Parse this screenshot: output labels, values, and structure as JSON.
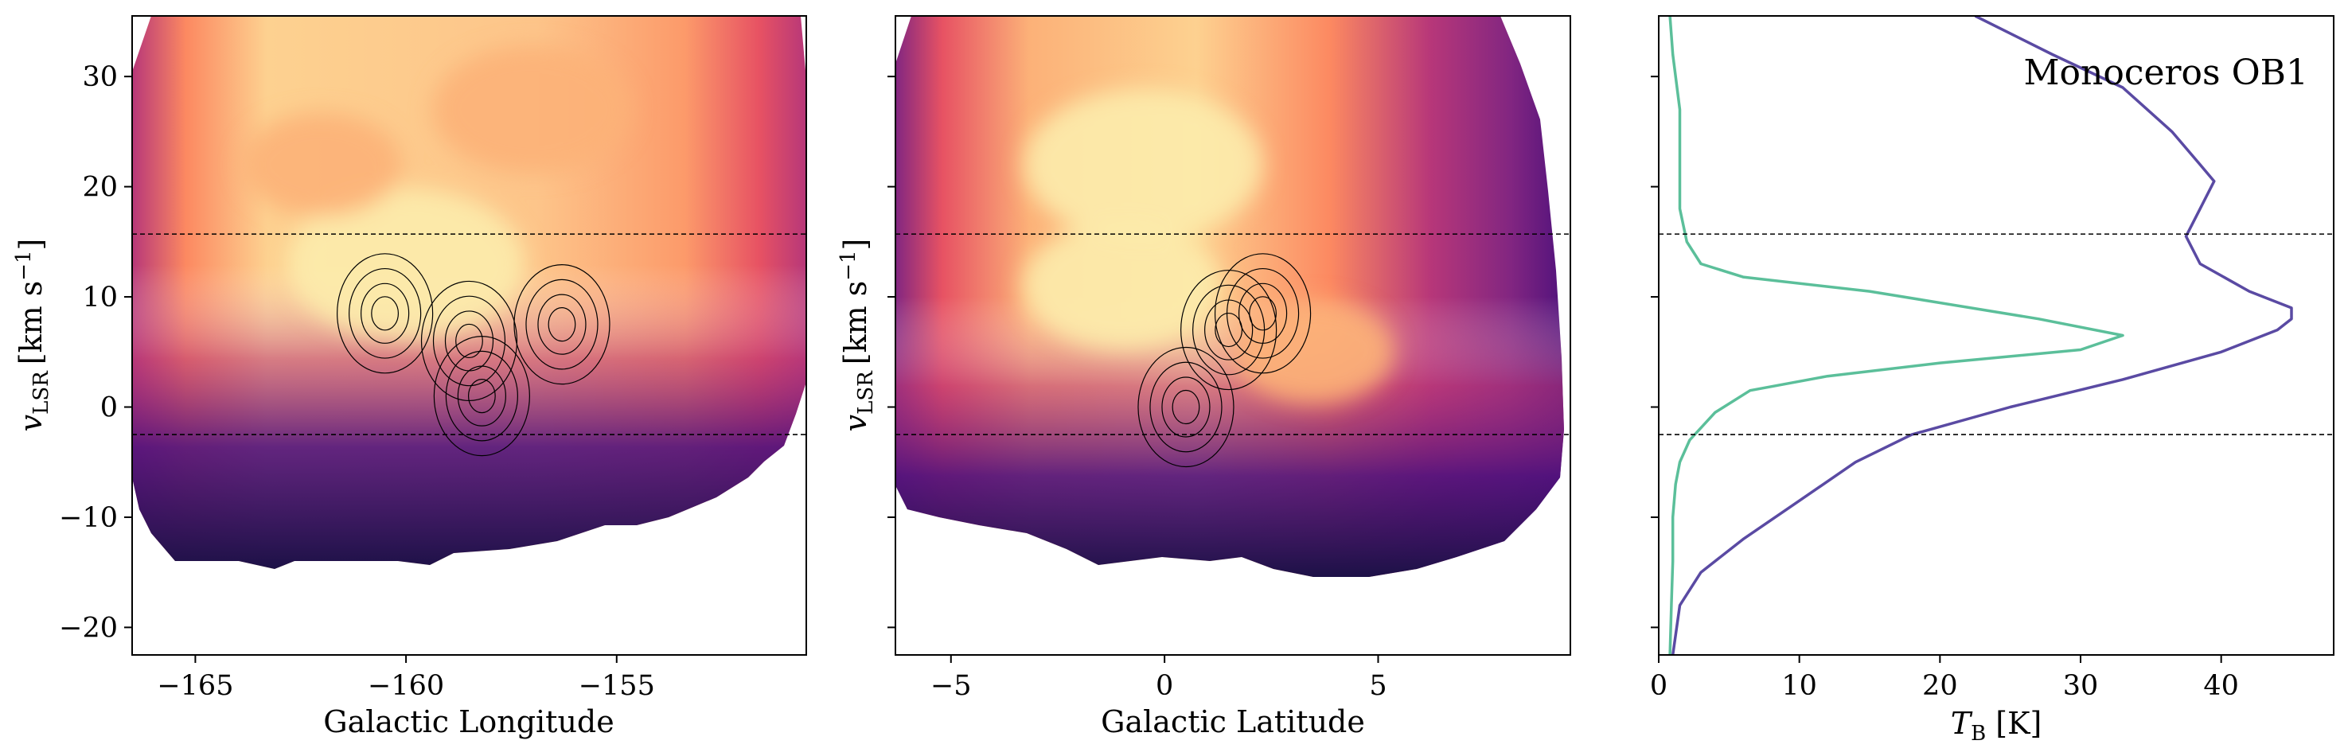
{
  "chart_data": [
    {
      "type": "heatmap",
      "xlabel": "Galactic Longitude",
      "ylabel_main": "v",
      "ylabel_sub": "LSR",
      "ylabel_unit": "[km s",
      "ylabel_exp": "−1",
      "ylabel_close": "]",
      "xlim": [
        -166.5,
        -150.5
      ],
      "ylim": [
        -22.5,
        35.5
      ],
      "xticks": [
        -165,
        -160,
        -155
      ],
      "xtick_labels": [
        "−165",
        "−160",
        "−155"
      ],
      "yticks": [
        -20,
        -10,
        0,
        10,
        20,
        30
      ],
      "ytick_labels": [
        "−20",
        "−10",
        "0",
        "10",
        "20",
        "30"
      ],
      "hlines": [
        15.7,
        -2.5
      ],
      "colormap": [
        "#000004",
        "#1d1147",
        "#51127c",
        "#822681",
        "#b73779",
        "#e75263",
        "#fc8961",
        "#fcb178",
        "#fdd190",
        "#fcecac"
      ],
      "emission_hotspots": [
        {
          "x": -160,
          "y": 13,
          "level": 0.96
        },
        {
          "x": -157,
          "y": 27,
          "level": 0.8
        },
        {
          "x": -162,
          "y": 22,
          "level": 0.8
        }
      ],
      "contour_clumps": [
        {
          "x": -158.5,
          "y": 6
        },
        {
          "x": -156.3,
          "y": 7.5
        },
        {
          "x": -160.5,
          "y": 8.5
        },
        {
          "x": -158.2,
          "y": 1
        }
      ]
    },
    {
      "type": "heatmap",
      "xlabel": "Galactic Latitude",
      "ylabel_main": "v",
      "ylabel_sub": "LSR",
      "ylabel_unit": "[km s",
      "ylabel_exp": "−1",
      "ylabel_close": "]",
      "xlim": [
        -6.3,
        9.5
      ],
      "ylim": [
        -22.5,
        35.5
      ],
      "xticks": [
        -5,
        0,
        5
      ],
      "xtick_labels": [
        "−5",
        "0",
        "5"
      ],
      "yticks": [
        -20,
        -10,
        0,
        10,
        20,
        30
      ],
      "hlines": [
        15.7,
        -2.5
      ],
      "colormap": [
        "#000004",
        "#1d1147",
        "#51127c",
        "#822681",
        "#b73779",
        "#e75263",
        "#fc8961",
        "#fcb178",
        "#fdd190",
        "#fcecac"
      ],
      "emission_hotspots": [
        {
          "x": -0.5,
          "y": 22,
          "level": 1.0
        },
        {
          "x": -1.0,
          "y": 11,
          "level": 1.0
        },
        {
          "x": 3.5,
          "y": 5,
          "level": 0.75
        }
      ],
      "contour_clumps": [
        {
          "x": 1.5,
          "y": 7
        },
        {
          "x": 2.3,
          "y": 8.5
        },
        {
          "x": 0.5,
          "y": 0
        }
      ]
    },
    {
      "type": "line",
      "title": "Monoceros OB1",
      "xlabel_main": "T",
      "xlabel_sub": "B",
      "xlabel_unit": " [K]",
      "xlim": [
        0,
        48
      ],
      "ylim": [
        -22.5,
        35.5
      ],
      "xticks": [
        0,
        10,
        20,
        30,
        40
      ],
      "xtick_labels": [
        "0",
        "10",
        "20",
        "30",
        "40"
      ],
      "yticks": [
        -20,
        -10,
        0,
        10,
        20,
        30
      ],
      "hlines": [
        15.7,
        -2.5
      ],
      "series": [
        {
          "color": "#5bbf9a",
          "points": [
            [
              0.8,
              -22.5
            ],
            [
              0.9,
              -18
            ],
            [
              1.0,
              -14
            ],
            [
              1.0,
              -10
            ],
            [
              1.2,
              -7
            ],
            [
              1.5,
              -5
            ],
            [
              2.2,
              -3
            ],
            [
              4.0,
              -0.5
            ],
            [
              6.5,
              1.5
            ],
            [
              12,
              2.8
            ],
            [
              20,
              4
            ],
            [
              30,
              5.2
            ],
            [
              33,
              6.5
            ],
            [
              27,
              8
            ],
            [
              15,
              10.5
            ],
            [
              6,
              11.8
            ],
            [
              3,
              13
            ],
            [
              2,
              15
            ],
            [
              1.5,
              18
            ],
            [
              1.5,
              22
            ],
            [
              1.5,
              27
            ],
            [
              1.0,
              32
            ],
            [
              0.8,
              35.5
            ]
          ]
        },
        {
          "color": "#5a4aa3",
          "points": [
            [
              1.0,
              -22.5
            ],
            [
              1.5,
              -18
            ],
            [
              3.0,
              -15
            ],
            [
              6.0,
              -12
            ],
            [
              10,
              -8.5
            ],
            [
              14,
              -5
            ],
            [
              18,
              -2.5
            ],
            [
              25,
              0
            ],
            [
              33,
              2.5
            ],
            [
              40,
              5
            ],
            [
              44,
              7
            ],
            [
              45,
              8
            ],
            [
              45,
              9
            ],
            [
              42,
              10.5
            ],
            [
              38.5,
              13
            ],
            [
              37.5,
              15.5
            ],
            [
              38.5,
              18
            ],
            [
              39.5,
              20.5
            ],
            [
              38.5,
              22
            ],
            [
              36.5,
              25
            ],
            [
              33,
              29
            ],
            [
              28,
              32
            ],
            [
              22.5,
              35.5
            ]
          ]
        }
      ]
    }
  ]
}
